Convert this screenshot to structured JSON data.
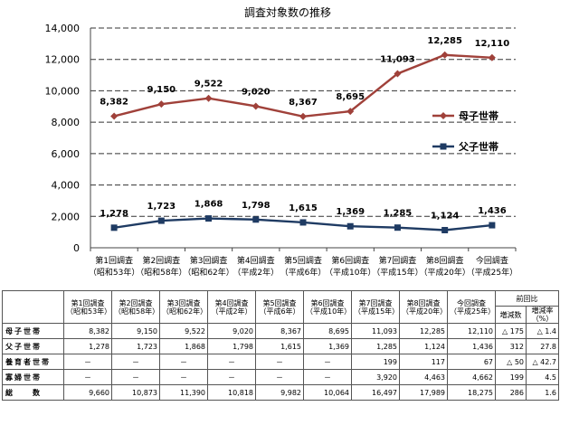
{
  "chart_data": {
    "type": "line",
    "title": "調査対象数の推移",
    "ylim": [
      0,
      14000
    ],
    "yticks": [
      "0",
      "2,000",
      "4,000",
      "6,000",
      "8,000",
      "10,000",
      "12,000",
      "14,000"
    ],
    "grid": true,
    "legend_placement": "right",
    "categories": [
      [
        "第1回調査",
        "（昭和53年）"
      ],
      [
        "第2回調査",
        "（昭和58年）"
      ],
      [
        "第3回調査",
        "（昭和62年）"
      ],
      [
        "第4回調査",
        "（平成2年）"
      ],
      [
        "第5回調査",
        "（平成6年）"
      ],
      [
        "第6回調査",
        "（平成10年）"
      ],
      [
        "第7回調査",
        "（平成15年）"
      ],
      [
        "第8回調査",
        "（平成20年）"
      ],
      [
        "今回調査",
        "（平成25年）"
      ]
    ],
    "series": [
      {
        "name": "母子世帯",
        "color": "#a0413a",
        "marker": "diamond",
        "values": [
          8382,
          9150,
          9522,
          9020,
          8367,
          8695,
          11093,
          12285,
          12110
        ],
        "labels": [
          "8,382",
          "9,150",
          "9,522",
          "9,020",
          "8,367",
          "8,695",
          "11,093",
          "12,285",
          "12,110"
        ]
      },
      {
        "name": "父子世帯",
        "color": "#1f3b63",
        "marker": "square",
        "values": [
          1278,
          1723,
          1868,
          1798,
          1615,
          1369,
          1285,
          1124,
          1436
        ],
        "labels": [
          "1,278",
          "1,723",
          "1,868",
          "1,798",
          "1,615",
          "1,369",
          "1,285",
          "1,124",
          "1,436"
        ]
      }
    ]
  },
  "table": {
    "columns": [
      [
        "第1回調査",
        "（昭和53年）"
      ],
      [
        "第2回調査",
        "（昭和58年）"
      ],
      [
        "第3回調査",
        "（昭和62年）"
      ],
      [
        "第4回調査",
        "（平成2年）"
      ],
      [
        "第5回調査",
        "（平成6年）"
      ],
      [
        "第6回調査",
        "（平成10年）"
      ],
      [
        "第7回調査",
        "（平成15年）"
      ],
      [
        "第8回調査",
        "（平成20年）"
      ],
      [
        "今回調査",
        "（平成25年）"
      ]
    ],
    "comparison_header": "前回比",
    "comparison_columns": [
      "増減数",
      "増減率",
      "（%）"
    ],
    "rows": [
      {
        "label": "母子世帯",
        "values": [
          "8,382",
          "9,150",
          "9,522",
          "9,020",
          "8,367",
          "8,695",
          "11,093",
          "12,285",
          "12,110"
        ],
        "change": "△ 175",
        "rate": "△ 1.4"
      },
      {
        "label": "父子世帯",
        "values": [
          "1,278",
          "1,723",
          "1,868",
          "1,798",
          "1,615",
          "1,369",
          "1,285",
          "1,124",
          "1,436"
        ],
        "change": "312",
        "rate": "27.8"
      },
      {
        "label": "養育者世帯",
        "values": [
          "－",
          "－",
          "－",
          "－",
          "－",
          "－",
          "199",
          "117",
          "67"
        ],
        "change": "△ 50",
        "rate": "△ 42.7"
      },
      {
        "label": "寡婦世帯",
        "values": [
          "－",
          "－",
          "－",
          "－",
          "－",
          "－",
          "3,920",
          "4,463",
          "4,662"
        ],
        "change": "199",
        "rate": "4.5"
      },
      {
        "label": "総　　数",
        "values": [
          "9,660",
          "10,873",
          "11,390",
          "10,818",
          "9,982",
          "10,064",
          "16,497",
          "17,989",
          "18,275"
        ],
        "change": "286",
        "rate": "1.6"
      }
    ]
  }
}
